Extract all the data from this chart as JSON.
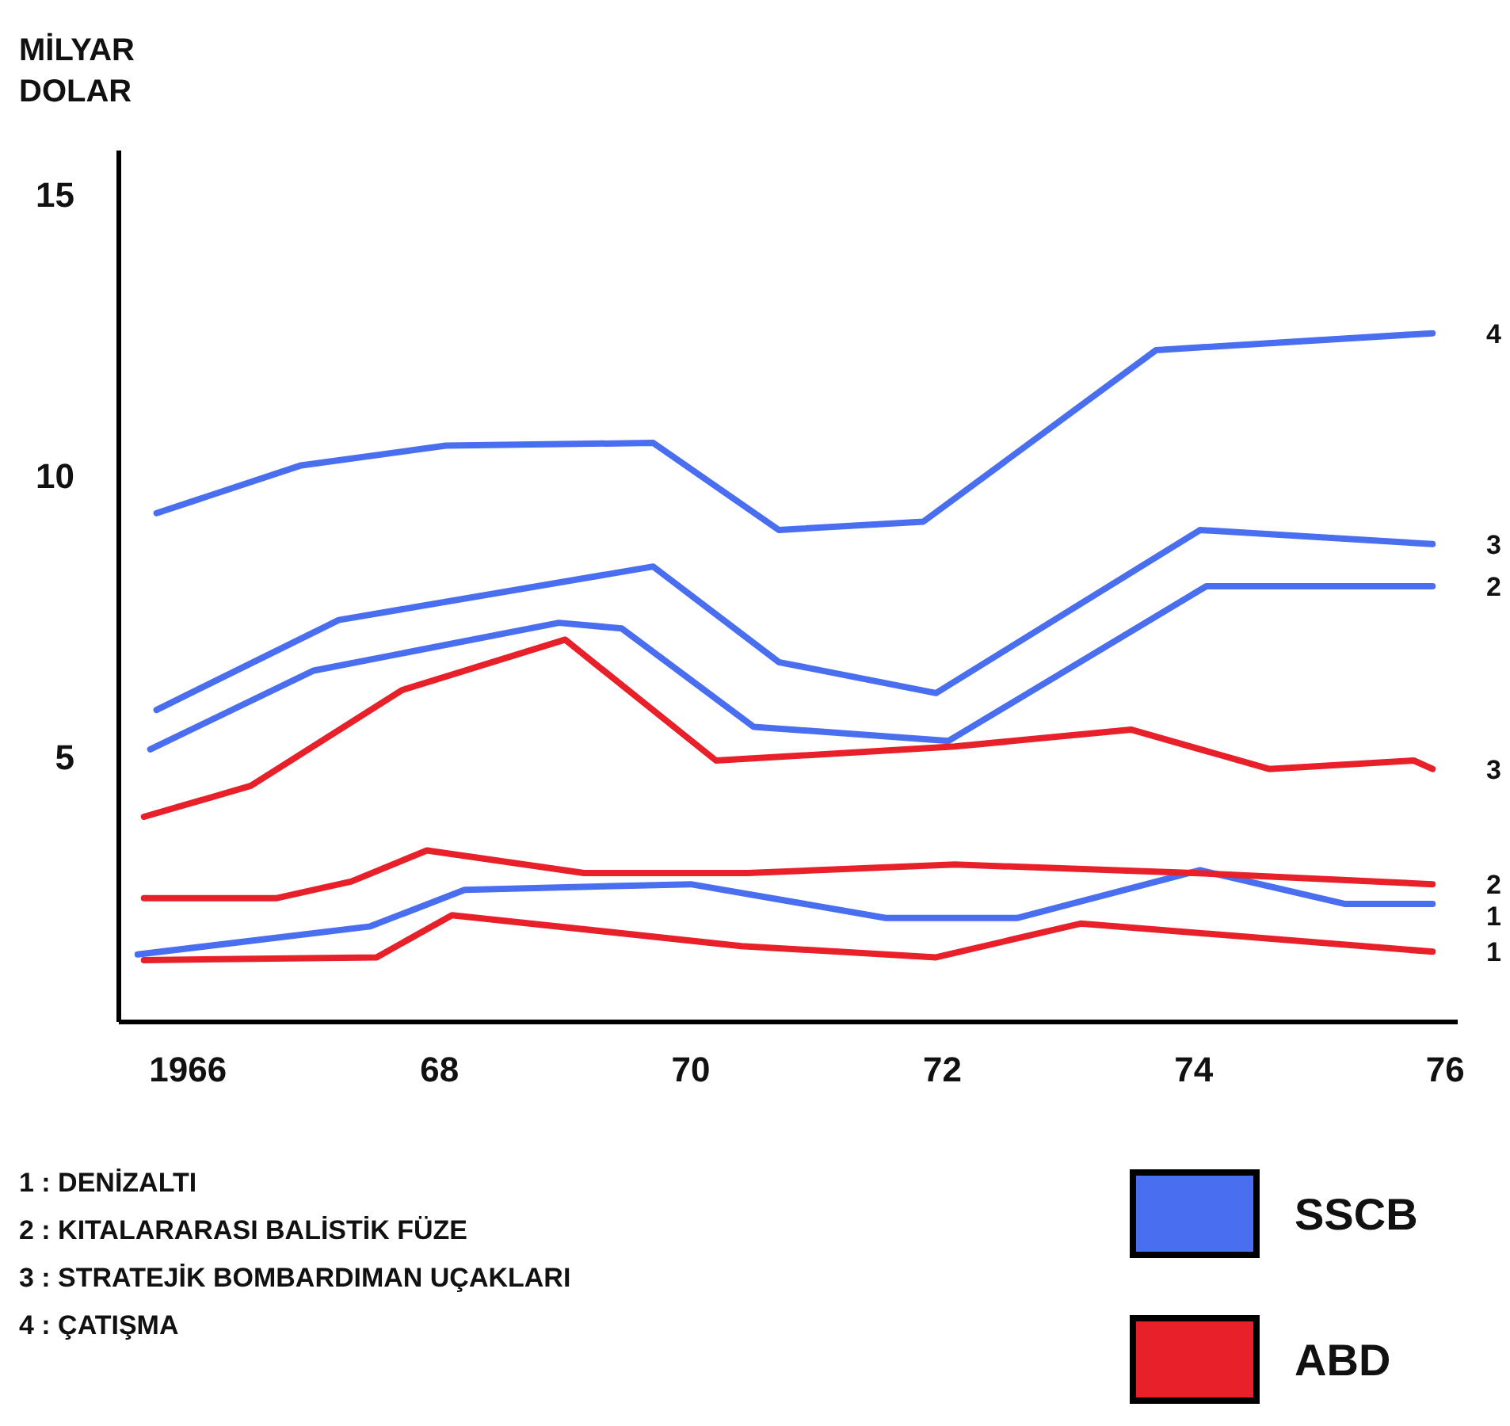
{
  "chart_data": {
    "type": "line",
    "ylabel": "MİLYAR DOLAR",
    "xlim": [
      1965.45,
      1976.1
    ],
    "ylim": [
      0.3,
      15.8
    ],
    "xticks": [
      {
        "value": 1966,
        "label": "1966"
      },
      {
        "value": 1968,
        "label": "68"
      },
      {
        "value": 1970,
        "label": "70"
      },
      {
        "value": 1972,
        "label": "72"
      },
      {
        "value": 1974,
        "label": "74"
      },
      {
        "value": 1976,
        "label": "76"
      }
    ],
    "yticks": [
      5,
      10,
      15
    ],
    "grid": false,
    "legend": "bottom right",
    "marker": "none",
    "line_style": "solid",
    "series": [
      {
        "name": "SSCB",
        "color": "#4a6ef0",
        "x": [
          1965.75,
          1966.9,
          1968.05,
          1969.7,
          1970.7,
          1971.85,
          1973.7,
          1975.9
        ],
        "values": [
          9.35,
          10.2,
          10.55,
          10.6,
          9.05,
          9.2,
          12.25,
          12.55
        ]
      },
      {
        "color": "#4a6ef0",
        "x": [
          1965.75,
          1967.2,
          1969.7,
          1970.7,
          1971.95,
          1974.05,
          1975.9
        ],
        "values": [
          5.85,
          7.45,
          8.4,
          6.7,
          6.15,
          9.05,
          8.8
        ]
      },
      {
        "color": "#4a6ef0",
        "x": [
          1965.7,
          1967,
          1968.95,
          1969.45,
          1970.5,
          1972.05,
          1974.1,
          1975.9
        ],
        "values": [
          5.15,
          6.55,
          7.4,
          7.3,
          5.55,
          5.3,
          8.05,
          8.05
        ]
      },
      {
        "color": "#4a6ef0",
        "x": [
          1965.6,
          1967.45,
          1968.2,
          1970,
          1971.55,
          1972.6,
          1974.05,
          1975.2,
          1975.9
        ],
        "values": [
          1.5,
          2.0,
          2.65,
          2.75,
          2.15,
          2.15,
          3.0,
          2.4,
          2.4
        ]
      },
      {
        "name": "ABD",
        "color": "#e8202a",
        "x": [
          1965.65,
          1966.5,
          1967.7,
          1969,
          1970.2,
          1972.1,
          1973.5,
          1974.6,
          1975.75,
          1975.9
        ],
        "values": [
          3.95,
          4.5,
          6.2,
          7.1,
          4.95,
          5.2,
          5.5,
          4.8,
          4.95,
          4.8
        ]
      },
      {
        "color": "#e8202a",
        "x": [
          1965.65,
          1966.7,
          1967.3,
          1967.9,
          1969.15,
          1970.45,
          1972.1,
          1974,
          1975.9
        ],
        "values": [
          2.5,
          2.5,
          2.8,
          3.35,
          2.95,
          2.95,
          3.1,
          2.95,
          2.75
        ]
      },
      {
        "color": "#e8202a",
        "x": [
          1965.65,
          1967.5,
          1968.1,
          1970.4,
          1971.95,
          1973.1,
          1975.9
        ],
        "values": [
          1.4,
          1.45,
          2.2,
          1.65,
          1.45,
          2.05,
          1.55
        ]
      }
    ],
    "annotations": [
      "4",
      "3",
      "2",
      "1",
      "3",
      "2",
      "1",
      "1 : DENİZALTI",
      "2 : KITALARARASI BALİSTİK FÜZE",
      "3 : STRATEJİK BOMBARDIMAN UÇAKLARI",
      "4 : ÇATIŞMA"
    ]
  }
}
